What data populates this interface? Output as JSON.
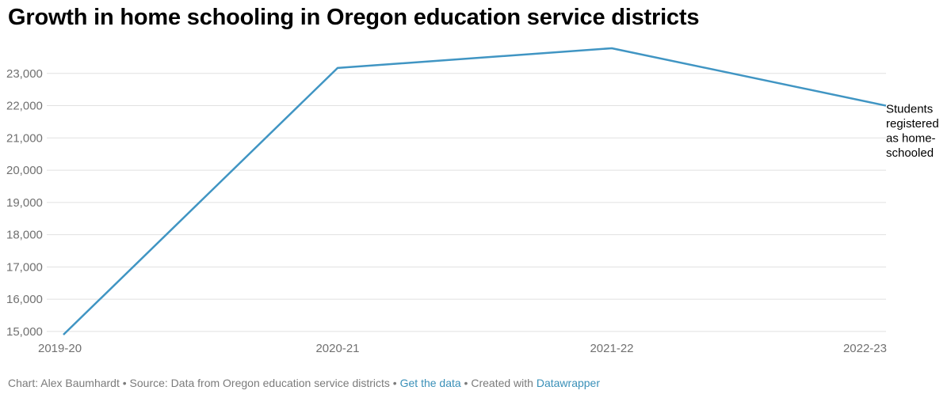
{
  "title": "Growth in home schooling in Oregon education service districts",
  "chart_data": {
    "type": "line",
    "x": [
      "2019-20",
      "2020-21",
      "2021-22",
      "2022-23"
    ],
    "series": [
      {
        "name": "Students registered as home-schooled",
        "values": [
          14900,
          23170,
          23780,
          22000
        ]
      }
    ],
    "series_label_lines": [
      "Students",
      "registered",
      "as home-",
      "schooled"
    ],
    "y_ticks": [
      15000,
      16000,
      17000,
      18000,
      19000,
      20000,
      21000,
      22000,
      23000
    ],
    "y_tick_labels": [
      "15,000",
      "16,000",
      "17,000",
      "18,000",
      "19,000",
      "20,000",
      "21,000",
      "22,000",
      "23,000"
    ],
    "ylim": [
      14900,
      24000
    ],
    "grid": true,
    "line_color": "#4095c3"
  },
  "footer": {
    "chart_by": "Chart: Alex Baumhardt",
    "sep1": " • ",
    "source": "Source: Data from Oregon education service districts",
    "sep2": " • ",
    "get_data": "Get the data",
    "sep3": " • ",
    "created_with": "Created with ",
    "tool": "Datawrapper"
  }
}
